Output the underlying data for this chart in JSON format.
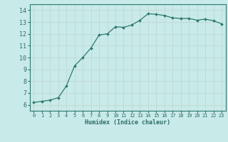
{
  "x": [
    0,
    1,
    2,
    3,
    4,
    5,
    6,
    7,
    8,
    9,
    10,
    11,
    12,
    13,
    14,
    15,
    16,
    17,
    18,
    19,
    20,
    21,
    22,
    23
  ],
  "y": [
    6.2,
    6.3,
    6.4,
    6.6,
    7.6,
    9.3,
    10.0,
    10.8,
    11.9,
    12.0,
    12.6,
    12.55,
    12.75,
    13.15,
    13.7,
    13.65,
    13.55,
    13.35,
    13.3,
    13.3,
    13.15,
    13.25,
    13.1,
    12.85
  ],
  "line_color": "#2d7a6e",
  "marker_color": "#2d7a6e",
  "bg_color": "#c8eae8",
  "grid_color": "#c0d8d4",
  "axis_color": "#2d7a6e",
  "tick_color": "#2d6e65",
  "xlabel": "Humidex (Indice chaleur)",
  "xlim": [
    -0.5,
    23.5
  ],
  "ylim": [
    5.5,
    14.5
  ],
  "yticks": [
    6,
    7,
    8,
    9,
    10,
    11,
    12,
    13,
    14
  ],
  "xticks": [
    0,
    1,
    2,
    3,
    4,
    5,
    6,
    7,
    8,
    9,
    10,
    11,
    12,
    13,
    14,
    15,
    16,
    17,
    18,
    19,
    20,
    21,
    22,
    23
  ]
}
